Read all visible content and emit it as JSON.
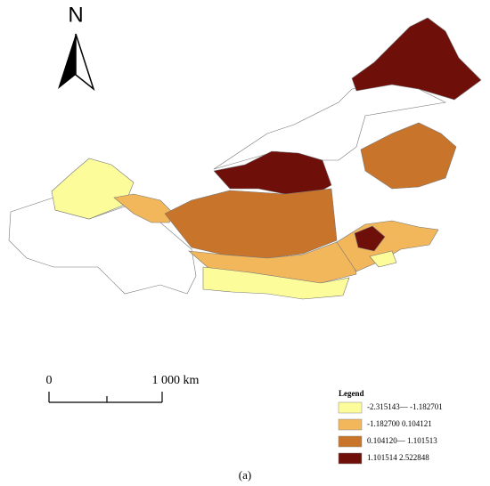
{
  "north_label": "N",
  "scale_bar": {
    "start_label": "0",
    "end_label": "1 000 km"
  },
  "legend": {
    "title": "Legend",
    "items": [
      {
        "label": "-2.315143— -1.182701",
        "color": "#fdfc9a"
      },
      {
        "label": "-1.182700   0.104121",
        "color": "#f2b65b"
      },
      {
        "label": "0.104120— 1.101513",
        "color": "#c8742a"
      },
      {
        "label": "1.101514   2.522848",
        "color": "#6e0f0a"
      }
    ]
  },
  "caption": "(a)"
}
